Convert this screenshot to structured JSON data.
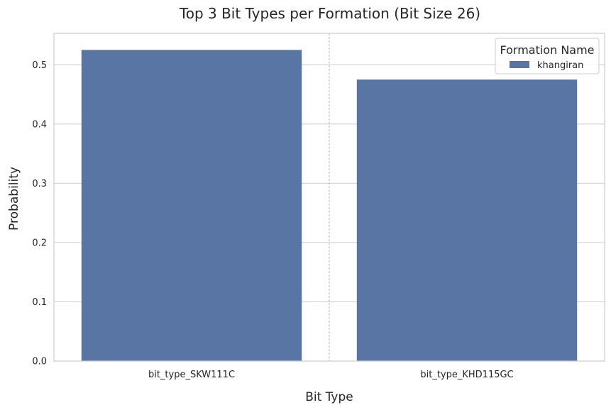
{
  "chart_data": {
    "type": "bar",
    "title": "Top 3 Bit Types per Formation (Bit Size 26)",
    "xlabel": "Bit Type",
    "ylabel": "Probability",
    "categories": [
      "bit_type_SKW111C",
      "bit_type_KHD115GC"
    ],
    "series": [
      {
        "name": "khangiran",
        "values": [
          0.525,
          0.475
        ],
        "color": "#5875a4"
      }
    ],
    "ylim": [
      0,
      0.553
    ],
    "yticks": [
      0.0,
      0.1,
      0.2,
      0.3,
      0.4,
      0.5
    ],
    "ytick_labels": [
      "0.0",
      "0.1",
      "0.2",
      "0.3",
      "0.4",
      "0.5"
    ],
    "grid": true,
    "category_separator": "dashed",
    "legend": {
      "title": "Formation Name",
      "placement": "top-right"
    }
  }
}
